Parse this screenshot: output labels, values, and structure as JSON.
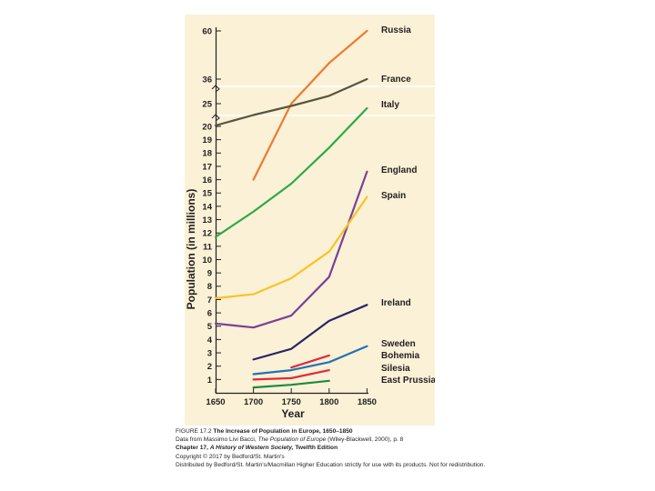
{
  "chart_data": {
    "type": "line",
    "title": "The Increase of Population in Europe, 1650–1850",
    "xlabel": "Year",
    "ylabel": "Population (in millions)",
    "x_ticks": [
      1650,
      1700,
      1750,
      1800,
      1850
    ],
    "y_ticks": [
      "1",
      "2",
      "3",
      "4",
      "5",
      "6",
      "7",
      "8",
      "9",
      "10",
      "11",
      "12",
      "13",
      "14",
      "15",
      "16",
      "17",
      "18",
      "19",
      "20",
      "25",
      "36",
      "60"
    ],
    "axis_breaks": "upper y-axis compressed above 20 (25, 36, 60)",
    "series": [
      {
        "name": "Russia",
        "color": "#ec7a2f",
        "x": [
          1700,
          1750,
          1800,
          1850
        ],
        "y": [
          16,
          25,
          44,
          60
        ]
      },
      {
        "name": "France",
        "color": "#58553e",
        "x": [
          1650,
          1700,
          1750,
          1800,
          1850
        ],
        "y": [
          20.2,
          22.5,
          24.5,
          28.5,
          36
        ]
      },
      {
        "name": "Italy",
        "color": "#2caa4a",
        "x": [
          1650,
          1700,
          1750,
          1800,
          1850
        ],
        "y": [
          11.7,
          13.6,
          15.7,
          18.4,
          24
        ]
      },
      {
        "name": "England",
        "color": "#7a3f98",
        "x": [
          1650,
          1700,
          1750,
          1800,
          1850
        ],
        "y": [
          5.2,
          4.9,
          5.8,
          8.7,
          16.6
        ]
      },
      {
        "name": "Spain",
        "color": "#f9c325",
        "x": [
          1650,
          1700,
          1750,
          1800,
          1850
        ],
        "y": [
          7.1,
          7.4,
          8.6,
          10.6,
          14.7
        ]
      },
      {
        "name": "Ireland",
        "color": "#2e2167",
        "x": [
          1700,
          1750,
          1800,
          1850
        ],
        "y": [
          2.5,
          3.3,
          5.4,
          6.6
        ]
      },
      {
        "name": "Sweden",
        "color": "#e02a3b",
        "x": [
          1750,
          1800
        ],
        "y": [
          1.9,
          2.8
        ]
      },
      {
        "name": "Bohemia",
        "color": "#2372b6",
        "x": [
          1700,
          1750,
          1800,
          1850
        ],
        "y": [
          1.4,
          1.7,
          2.3,
          3.5
        ]
      },
      {
        "name": "Silesia",
        "color": "#e02a3b",
        "x": [
          1700,
          1750,
          1800
        ],
        "y": [
          1.0,
          1.1,
          1.7
        ]
      },
      {
        "name": "East Prussia",
        "color": "#1e8a3f",
        "x": [
          1700,
          1750,
          1800
        ],
        "y": [
          0.4,
          0.6,
          0.9
        ]
      }
    ]
  },
  "caption": {
    "figure_label": "FIGURE 17.2",
    "figure_title": "The Increase of Population in Europe, 1650–1850",
    "data_prefix": "Data from Massimo Livi Bacci,",
    "data_book": "The Population of Europe",
    "data_suffix": "(Wiley-Blackwell, 2000), p. 8",
    "chapter_prefix": "Chapter 17,",
    "chapter_book": "A History of Western Society,",
    "chapter_suffix": "Twelfth Edition",
    "copyright": "Copyright © 2017 by Bedford/St. Martin's",
    "distribution": "Distributed by Bedford/St. Martin's/Macmillan Higher Education strictly for use with its products. Not for redistribution."
  }
}
